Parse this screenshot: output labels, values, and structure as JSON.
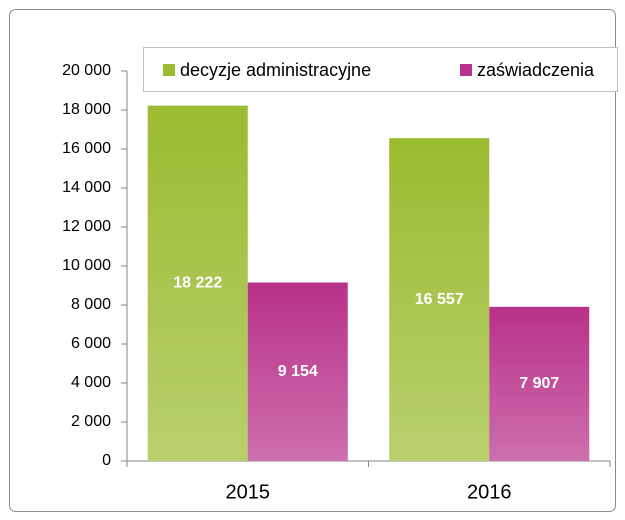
{
  "chart_data": {
    "type": "bar",
    "categories": [
      "2015",
      "2016"
    ],
    "series": [
      {
        "name": "decyzje administracyjne",
        "color": "#9bbb30",
        "values": [
          18222,
          16557
        ],
        "value_labels": [
          "18 222",
          "16 557"
        ]
      },
      {
        "name": "zaświadczenia",
        "color": "#b8318a",
        "values": [
          9154,
          7907
        ],
        "value_labels": [
          "9 154",
          "7 907"
        ]
      }
    ],
    "ylim": [
      0,
      20000
    ],
    "yticks": [
      0,
      {
        "value": 2000,
        "label": "2 000"
      },
      {
        "value": 4000,
        "label": "4 000"
      },
      {
        "value": 6000,
        "label": "6 000"
      },
      {
        "value": 8000,
        "label": "8 000"
      },
      {
        "value": 10000,
        "label": "10 000"
      },
      {
        "value": 12000,
        "label": "12 000"
      },
      {
        "value": 14000,
        "label": "14 000"
      },
      {
        "value": 16000,
        "label": "16 000"
      },
      {
        "value": 18000,
        "label": "18 000"
      },
      {
        "value": 20000,
        "label": "20 000"
      }
    ],
    "legend": "top"
  }
}
